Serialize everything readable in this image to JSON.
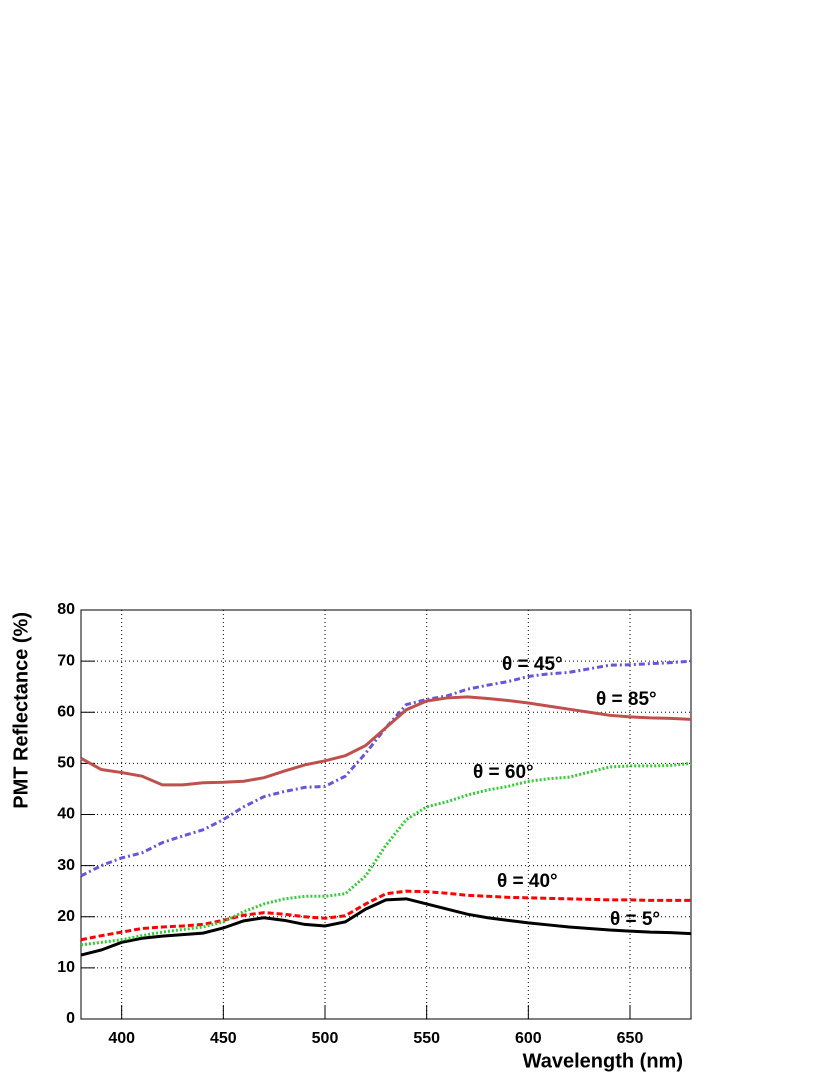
{
  "chart_data": {
    "type": "line",
    "x_label": "Wavelength (nm)",
    "y_label": "PMT Reflectance (%)",
    "x": [
      380,
      390,
      400,
      410,
      420,
      430,
      440,
      450,
      460,
      470,
      480,
      490,
      500,
      510,
      520,
      530,
      540,
      550,
      560,
      570,
      580,
      590,
      600,
      610,
      620,
      630,
      640,
      650,
      660,
      670,
      680
    ],
    "series": [
      {
        "name": "θ = 5°",
        "color": "#000000",
        "dash": "solid",
        "values": [
          12.5,
          13.5,
          15,
          15.8,
          16.2,
          16.5,
          16.8,
          17.8,
          19.2,
          19.8,
          19.3,
          18.5,
          18.2,
          19,
          21.5,
          23.3,
          23.5,
          22.5,
          21.5,
          20.5,
          19.8,
          19.3,
          18.8,
          18.4,
          18,
          17.7,
          17.4,
          17.2,
          17,
          16.9,
          16.7
        ]
      },
      {
        "name": "θ = 40°",
        "color": "#ff0000",
        "dash": "dashed",
        "values": [
          15.5,
          16.3,
          17,
          17.7,
          18,
          18.2,
          18.5,
          19.3,
          20.3,
          20.8,
          20.5,
          20,
          19.7,
          20.2,
          22.5,
          24.5,
          25,
          24.9,
          24.6,
          24.2,
          24,
          23.8,
          23.7,
          23.6,
          23.5,
          23.4,
          23.3,
          23.3,
          23.2,
          23.2,
          23.2
        ]
      },
      {
        "name": "θ = 60°",
        "color": "#33cc33",
        "dash": "dotted",
        "values": [
          14.5,
          15,
          15.5,
          16.3,
          17,
          17.5,
          18,
          19,
          21,
          22.5,
          23.5,
          24,
          24,
          24.5,
          28,
          34,
          39,
          41.5,
          42.5,
          43.8,
          44.8,
          45.5,
          46.5,
          47,
          47.3,
          48.3,
          49.3,
          49.5,
          49.5,
          49.6,
          50
        ]
      },
      {
        "name": "θ = 45°",
        "color": "#6655dd",
        "dash": "dashdot",
        "values": [
          28,
          30,
          31.5,
          32.5,
          34.5,
          35.8,
          37,
          39,
          41.5,
          43.5,
          44.5,
          45.3,
          45.5,
          47.5,
          52,
          57,
          61.5,
          62.5,
          63.2,
          64.5,
          65.3,
          66,
          67,
          67.5,
          67.8,
          68.5,
          69.2,
          69.3,
          69.5,
          69.7,
          70
        ]
      },
      {
        "name": "θ = 85°",
        "color": "#c0504d",
        "dash": "solid",
        "values": [
          51,
          48.8,
          48.2,
          47.5,
          45.8,
          45.8,
          46.2,
          46.3,
          46.5,
          47.2,
          48.5,
          49.7,
          50.5,
          51.5,
          53.5,
          57,
          60.5,
          62.2,
          62.8,
          63,
          62.7,
          62.3,
          61.8,
          61.2,
          60.6,
          60,
          59.4,
          59.1,
          58.9,
          58.8,
          58.6
        ]
      }
    ],
    "xlim": [
      380,
      680
    ],
    "ylim": [
      0,
      80
    ],
    "xticks": [
      400,
      450,
      500,
      550,
      600,
      650
    ],
    "yticks": [
      0,
      10,
      20,
      30,
      40,
      50,
      60,
      70,
      80
    ],
    "grid": true
  }
}
